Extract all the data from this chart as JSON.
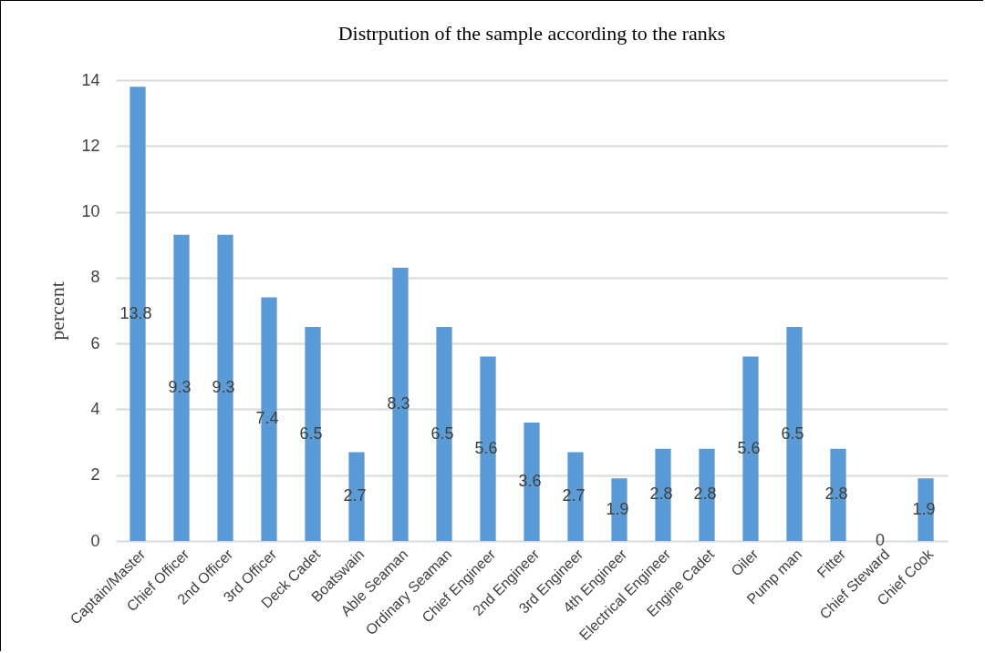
{
  "chart_data": {
    "type": "bar",
    "title": "Distrpution of the sample according to the ranks",
    "ylabel": "percent",
    "categories": [
      "Captain/Master",
      "Chief Officer",
      "2nd Officer",
      "3rd Officer",
      "Deck Cadet",
      "Boatswain",
      "Able Seaman",
      "Ordinary Seaman",
      "Chief Engineer",
      "2nd Engineer",
      "3rd Engineer",
      "4th Engineer",
      "Electrical Engineer",
      "Engine Cadet",
      "Oiler",
      "Pump man",
      "Fitter",
      "Chief Steward",
      "Chief Cook"
    ],
    "values": [
      13.8,
      9.3,
      9.3,
      7.4,
      6.5,
      2.7,
      8.3,
      6.5,
      5.6,
      3.6,
      2.7,
      1.9,
      2.8,
      2.8,
      5.6,
      6.5,
      2.8,
      0,
      1.9
    ],
    "color": "#5b9bd5",
    "ylim": [
      0,
      14
    ],
    "yticks": [
      0,
      2,
      4,
      6,
      8,
      10,
      12,
      14
    ],
    "grid": "y",
    "data_labels": true
  }
}
